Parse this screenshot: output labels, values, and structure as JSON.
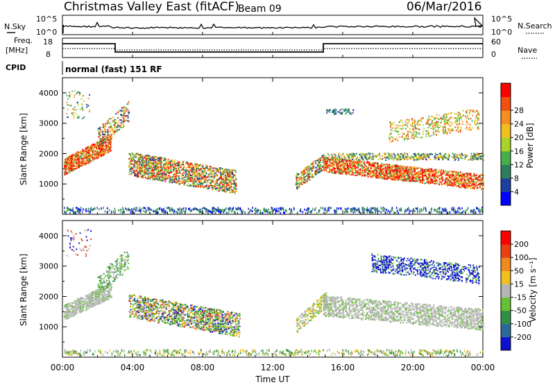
{
  "header": {
    "station": "Christmas Valley East (fitACF)",
    "beam": "Beam 09",
    "date": "06/Mar/2016"
  },
  "top_panel": {
    "left_label": "N.Sky",
    "right_label": "N.Search",
    "left_ticks": [
      "10^5",
      "10^0"
    ],
    "right_ticks": [
      "10^5",
      "10^0"
    ]
  },
  "freq_panel": {
    "left_label_1": "Freq.",
    "left_label_2": "[MHz]",
    "left_ticks": [
      "18",
      "8"
    ],
    "right_label": "Nave",
    "right_ticks": [
      "60",
      "0"
    ]
  },
  "cpid": {
    "label": "CPID",
    "text": "normal (fast) 151 RF"
  },
  "chart_data": [
    {
      "type": "heatmap",
      "name": "Power",
      "ylabel": "Slant Range [km]",
      "ylim": [
        0,
        4500
      ],
      "yticks": [
        "1000",
        "2000",
        "3000",
        "4000"
      ],
      "colorbar_label": "Power [dB]",
      "colorbar_ticks": [
        "4",
        "8",
        "12",
        "16",
        "20",
        "24",
        "28"
      ],
      "colorbar_colors": [
        "#0000ff",
        "#1f3fa0",
        "#2e7d5e",
        "#44b04a",
        "#a8d428",
        "#f0c020",
        "#f59020",
        "#f05010",
        "#ff0000"
      ]
    },
    {
      "type": "heatmap",
      "name": "Velocity",
      "ylabel": "Slant Range [km]",
      "ylim": [
        0,
        4500
      ],
      "yticks": [
        "1000",
        "2000",
        "3000",
        "4000"
      ],
      "colorbar_label": "Velocity [m s⁻¹]",
      "colorbar_ticks": [
        "200",
        "100",
        "50",
        "15",
        "-15",
        "-50",
        "-100",
        "-200"
      ],
      "colorbar_colors": [
        "#1010d0",
        "#2a6a9a",
        "#2f8f45",
        "#66c034",
        "#b5b5b5",
        "#f0c020",
        "#f08a20",
        "#e84010",
        "#ff0000"
      ]
    }
  ],
  "xaxis": {
    "ticks": [
      "00:00",
      "04:00",
      "08:00",
      "12:00",
      "16:00",
      "20:00",
      "00:00"
    ],
    "label": "Time UT"
  }
}
